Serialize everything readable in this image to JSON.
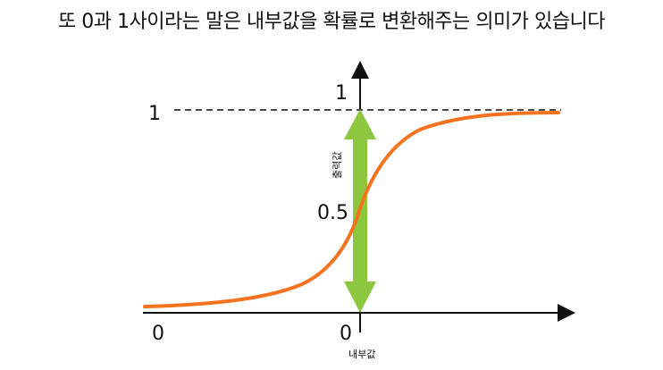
{
  "caption": "또 0과 1사이라는 말은 내부값을 확률로 변환해주는 의미가 있습니다",
  "labels": {
    "y_top": "1",
    "y_line": "1",
    "y_mid": "0.5",
    "x_left": "0",
    "x_origin": "0",
    "y_axis": "출력값",
    "x_axis": "내부값"
  },
  "colors": {
    "curve": "#F5731E",
    "arrow": "#8DC63F",
    "axes": "#111111",
    "dashed": "#111111"
  },
  "icons": {
    "double_arrow": "up-down-arrow"
  }
}
